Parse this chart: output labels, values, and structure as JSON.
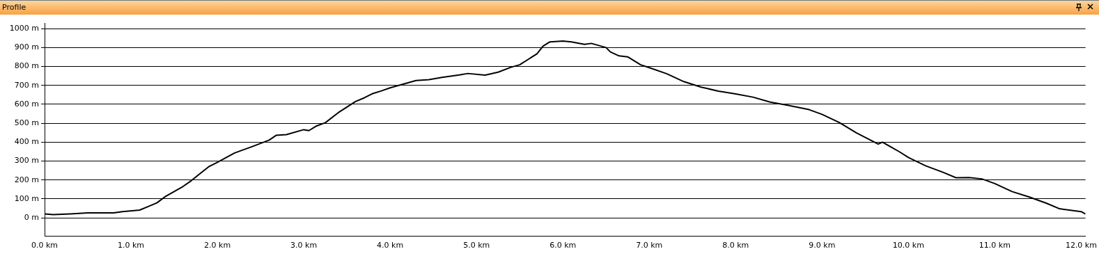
{
  "chart_data": {
    "type": "line",
    "title": "Profile",
    "x": [
      0,
      0.1,
      0.3,
      0.5,
      0.8,
      0.9,
      1.1,
      1.2,
      1.3,
      1.4,
      1.5,
      1.6,
      1.7,
      1.8,
      1.9,
      2.0,
      2.1,
      2.2,
      2.4,
      2.6,
      2.68,
      2.8,
      3.0,
      3.06,
      3.15,
      3.25,
      3.4,
      3.6,
      3.7,
      3.8,
      3.9,
      4.0,
      4.1,
      4.3,
      4.45,
      4.6,
      4.8,
      4.9,
      5.1,
      5.25,
      5.4,
      5.5,
      5.6,
      5.7,
      5.77,
      5.85,
      6.0,
      6.1,
      6.25,
      6.33,
      6.5,
      6.55,
      6.65,
      6.75,
      6.9,
      7.0,
      7.2,
      7.4,
      7.6,
      7.8,
      8.0,
      8.2,
      8.4,
      8.6,
      8.85,
      9.0,
      9.2,
      9.4,
      9.6,
      9.65,
      9.7,
      9.9,
      10.0,
      10.2,
      10.4,
      10.55,
      10.7,
      10.85,
      11.0,
      11.2,
      11.4,
      11.6,
      11.75,
      12.0,
      12.05
    ],
    "series": [
      {
        "color": "#000000",
        "values": [
          21,
          17,
          21,
          26,
          26,
          33,
          41,
          60,
          79,
          113,
          139,
          165,
          197,
          234,
          270,
          293,
          318,
          343,
          376,
          411,
          436,
          440,
          466,
          461,
          486,
          503,
          556,
          615,
          634,
          657,
          671,
          687,
          700,
          726,
          730,
          742,
          755,
          763,
          754,
          770,
          796,
          809,
          838,
          867,
          907,
          930,
          934,
          930,
          917,
          922,
          900,
          877,
          856,
          851,
          809,
          794,
          762,
          720,
          691,
          670,
          655,
          638,
          612,
          595,
          572,
          547,
          504,
          449,
          402,
          390,
          400,
          348,
          319,
          275,
          241,
          212,
          213,
          206,
          181,
          139,
          110,
          77,
          48,
          33,
          20
        ]
      }
    ],
    "xlim": [
      0,
      12.05
    ],
    "ylim": [
      -95,
      1030
    ],
    "xticks": [
      {
        "value": 0,
        "label": "0.0 km"
      },
      {
        "value": 1,
        "label": "1.0 km"
      },
      {
        "value": 2,
        "label": "2.0 km"
      },
      {
        "value": 3,
        "label": "3.0 km"
      },
      {
        "value": 4,
        "label": "4.0 km"
      },
      {
        "value": 5,
        "label": "5.0 km"
      },
      {
        "value": 6,
        "label": "6.0 km"
      },
      {
        "value": 7,
        "label": "7.0 km"
      },
      {
        "value": 8,
        "label": "8.0 km"
      },
      {
        "value": 9,
        "label": "9.0 km"
      },
      {
        "value": 10,
        "label": "10.0 km"
      },
      {
        "value": 11,
        "label": "11.0 km"
      },
      {
        "value": 12,
        "label": "12.0 km"
      }
    ],
    "yticks": [
      {
        "value": 0,
        "label": "0 m"
      },
      {
        "value": 100,
        "label": "100 m"
      },
      {
        "value": 200,
        "label": "200 m"
      },
      {
        "value": 300,
        "label": "300 m"
      },
      {
        "value": 400,
        "label": "400 m"
      },
      {
        "value": 500,
        "label": "500 m"
      },
      {
        "value": 600,
        "label": "600 m"
      },
      {
        "value": 700,
        "label": "700 m"
      },
      {
        "value": 800,
        "label": "800 m"
      },
      {
        "value": 900,
        "label": "900 m"
      },
      {
        "value": 1000,
        "label": "1000 m"
      }
    ],
    "grid": "y",
    "marker": "none",
    "line_style": "solid",
    "legend": false
  }
}
